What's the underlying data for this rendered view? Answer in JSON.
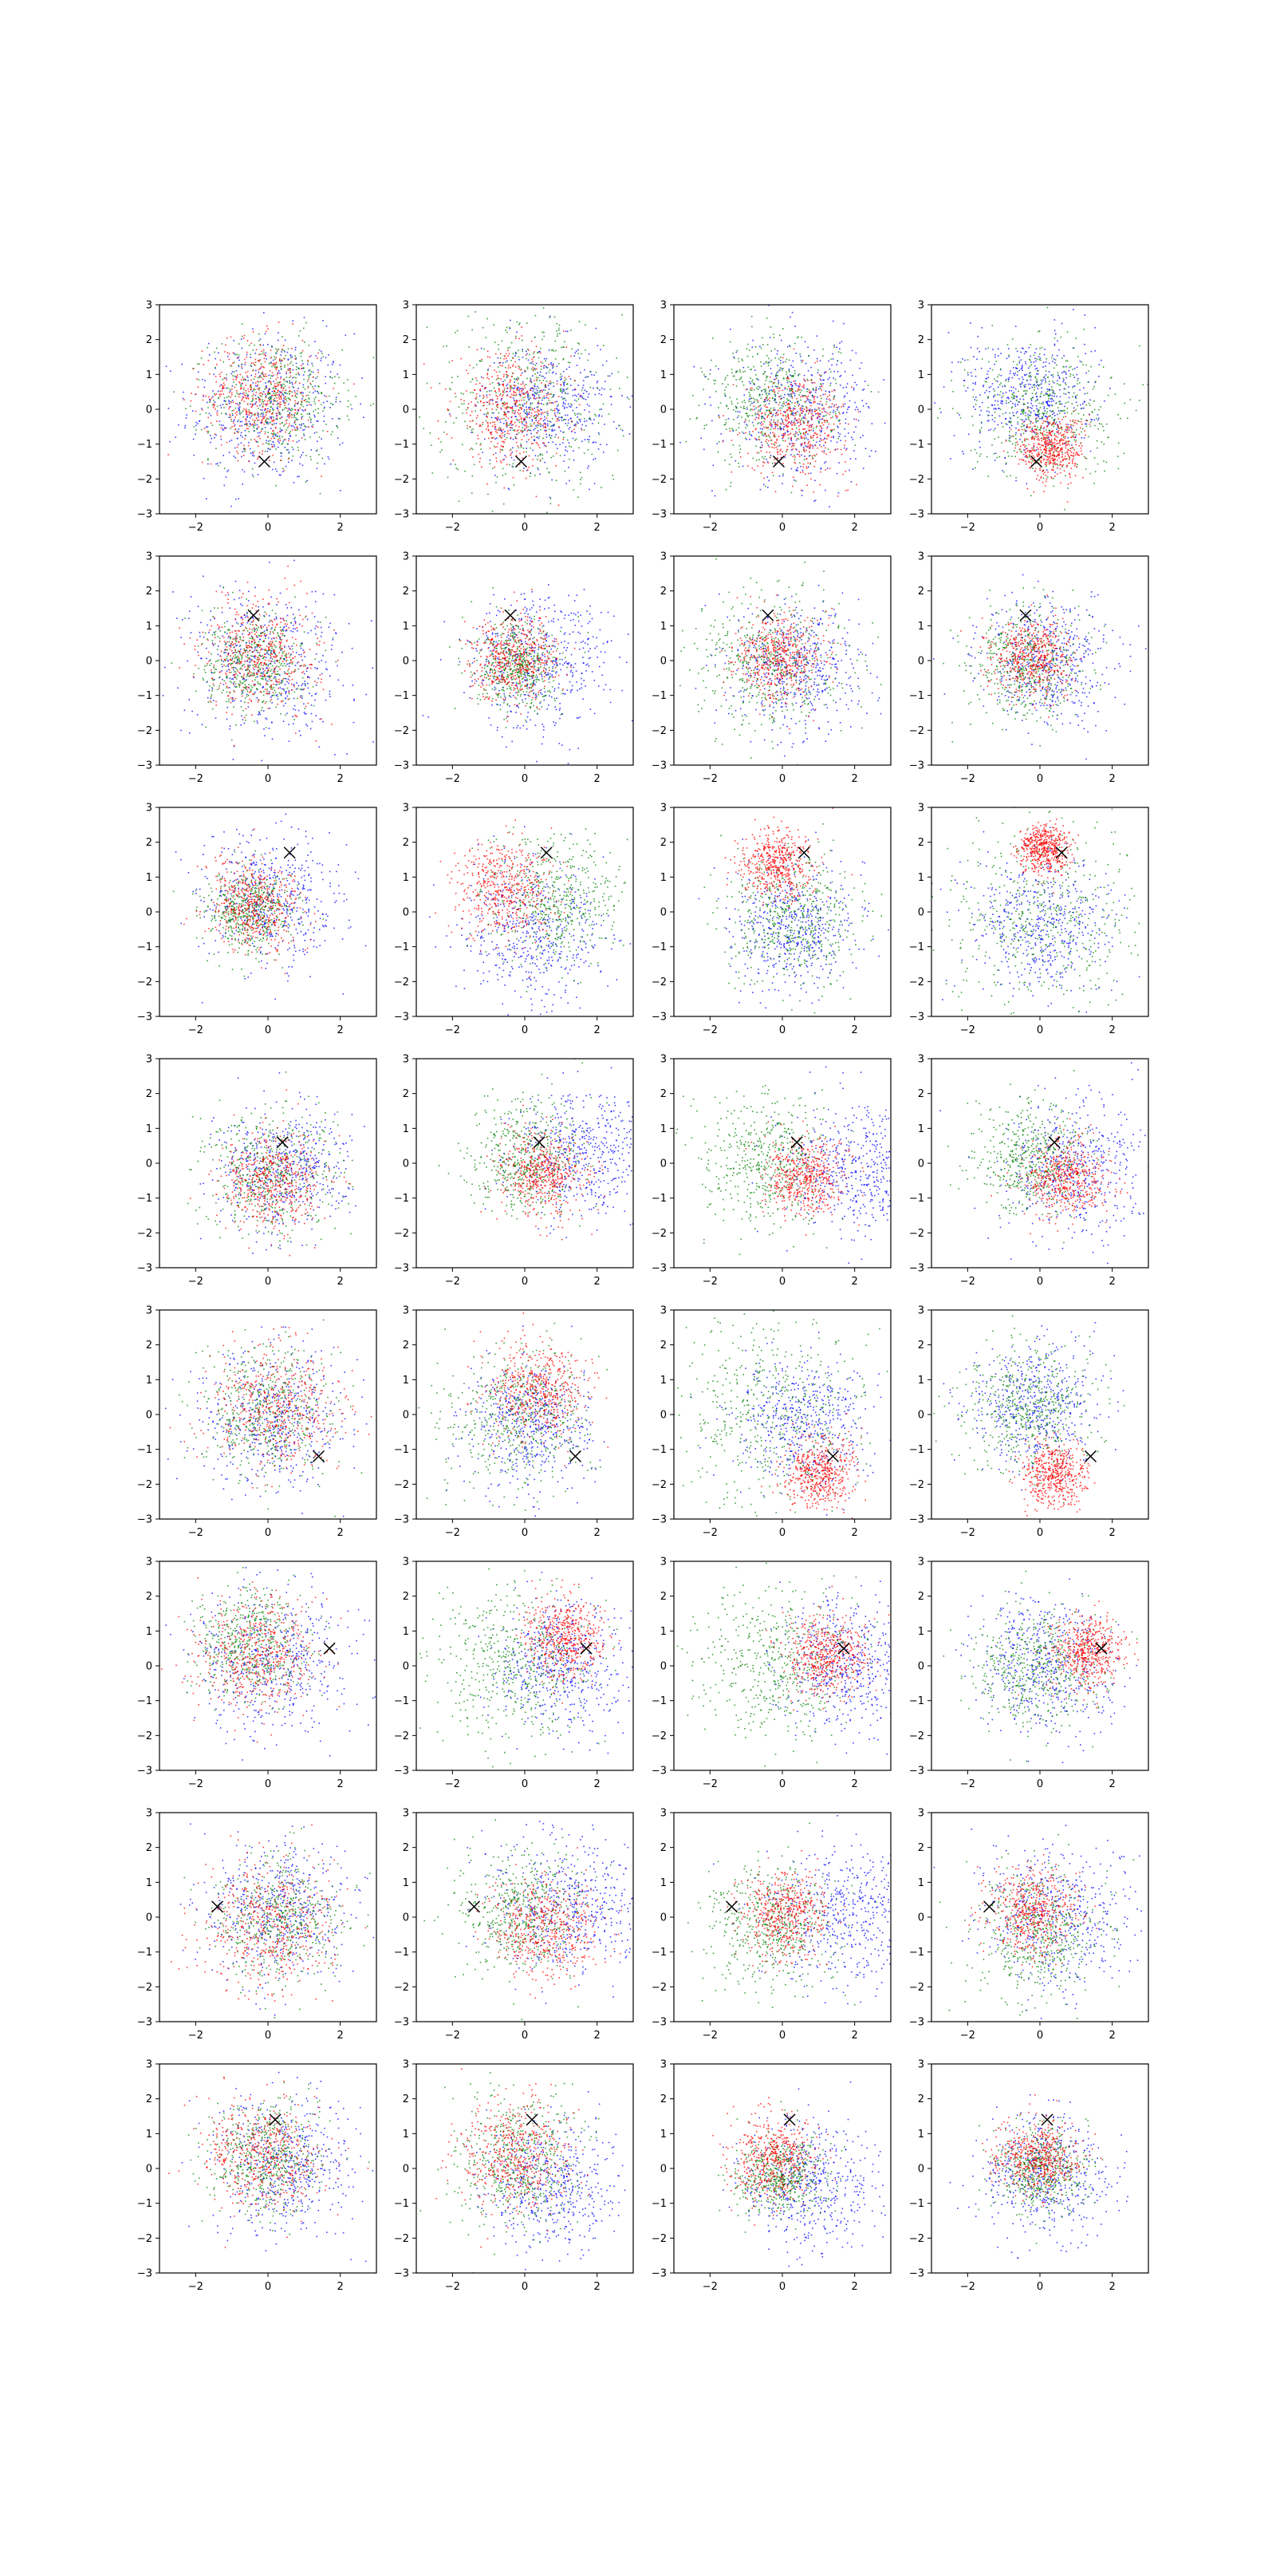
{
  "figure": {
    "rows": 8,
    "cols": 4,
    "x_ticks": [
      -2,
      0,
      2
    ],
    "y_ticks": [
      -3,
      -2,
      -1,
      0,
      1,
      2,
      3
    ],
    "xlim": [
      -3,
      3
    ],
    "ylim": [
      -3,
      3
    ]
  },
  "colors": {
    "series_a": "#0000ff",
    "series_b": "#008000",
    "series_c": "#ff0000",
    "marker": "#000000"
  },
  "chart_data": [
    {
      "type": "scatter",
      "marker_x": -0.1,
      "marker_y": -1.5,
      "panels": [
        {
          "blue": {
            "mean": [
              0,
              0
            ],
            "sd": 1.1,
            "n": 500
          },
          "green": {
            "mean": [
              0.2,
              0.3
            ],
            "sd": 0.9,
            "n": 500
          },
          "red": {
            "mean": [
              -0.2,
              0.4
            ],
            "sd": 0.8,
            "n": 500
          }
        },
        {
          "blue": {
            "mean": [
              0.6,
              0.1
            ],
            "sd": 0.9,
            "n": 500
          },
          "green": {
            "mean": [
              0.1,
              0.3
            ],
            "sd": 1.3,
            "n": 500
          },
          "red": {
            "mean": [
              -0.4,
              0
            ],
            "sd": 0.8,
            "n": 500
          }
        },
        {
          "blue": {
            "mean": [
              0.5,
              0
            ],
            "sd": 1.0,
            "n": 500
          },
          "green": {
            "mean": [
              -0.3,
              0.2
            ],
            "sd": 0.9,
            "n": 500
          },
          "red": {
            "mean": [
              0.4,
              -0.4
            ],
            "sd": 0.7,
            "n": 500
          }
        },
        {
          "blue": {
            "mean": [
              -0.3,
              0.4
            ],
            "sd": 0.9,
            "n": 500
          },
          "green": {
            "mean": [
              0,
              0
            ],
            "sd": 1.0,
            "n": 500
          },
          "red": {
            "mean": [
              0.3,
              -1.1
            ],
            "sd": 0.45,
            "n": 500
          }
        }
      ]
    },
    {
      "type": "scatter",
      "marker_x": -0.4,
      "marker_y": 1.3,
      "panels": [
        {
          "blue": {
            "mean": [
              0,
              0
            ],
            "sd": 1.1,
            "n": 500
          },
          "green": {
            "mean": [
              -0.4,
              -0.1
            ],
            "sd": 0.7,
            "n": 500
          },
          "red": {
            "mean": [
              -0.2,
              0.2
            ],
            "sd": 0.8,
            "n": 500
          }
        },
        {
          "blue": {
            "mean": [
              0.4,
              0
            ],
            "sd": 1.0,
            "n": 500
          },
          "green": {
            "mean": [
              -0.2,
              -0.2
            ],
            "sd": 0.6,
            "n": 500
          },
          "red": {
            "mean": [
              -0.3,
              0.1
            ],
            "sd": 0.6,
            "n": 500
          }
        },
        {
          "blue": {
            "mean": [
              0.4,
              -0.2
            ],
            "sd": 0.9,
            "n": 500
          },
          "green": {
            "mean": [
              -0.3,
              0
            ],
            "sd": 1.0,
            "n": 500
          },
          "red": {
            "mean": [
              -0.1,
              0.1
            ],
            "sd": 0.6,
            "n": 500
          }
        },
        {
          "blue": {
            "mean": [
              0.2,
              0
            ],
            "sd": 0.9,
            "n": 500
          },
          "green": {
            "mean": [
              -0.4,
              -0.1
            ],
            "sd": 0.8,
            "n": 500
          },
          "red": {
            "mean": [
              -0.2,
              0.1
            ],
            "sd": 0.55,
            "n": 500
          }
        }
      ]
    },
    {
      "type": "scatter",
      "marker_x": 0.6,
      "marker_y": 1.7,
      "panels": [
        {
          "blue": {
            "mean": [
              0,
              0.3
            ],
            "sd": 1.0,
            "n": 500
          },
          "green": {
            "mean": [
              -0.5,
              0
            ],
            "sd": 0.6,
            "n": 500
          },
          "red": {
            "mean": [
              -0.4,
              0.2
            ],
            "sd": 0.65,
            "n": 500
          }
        },
        {
          "blue": {
            "mean": [
              0.3,
              -0.6
            ],
            "sd": 1.0,
            "n": 500
          },
          "green": {
            "mean": [
              0.8,
              0.4
            ],
            "sd": 0.9,
            "n": 500
          },
          "red": {
            "mean": [
              -0.6,
              0.7
            ],
            "sd": 0.7,
            "n": 500
          }
        },
        {
          "blue": {
            "mean": [
              0.4,
              -0.4
            ],
            "sd": 0.9,
            "n": 500
          },
          "green": {
            "mean": [
              0.2,
              -0.2
            ],
            "sd": 0.9,
            "n": 500
          },
          "red": {
            "mean": [
              -0.2,
              1.4
            ],
            "sd": 0.5,
            "n": 500
          }
        },
        {
          "blue": {
            "mean": [
              0,
              -0.3
            ],
            "sd": 1.0,
            "n": 500
          },
          "green": {
            "mean": [
              0,
              -0.2
            ],
            "sd": 1.4,
            "n": 500
          },
          "red": {
            "mean": [
              0.1,
              1.8
            ],
            "sd": 0.35,
            "n": 500
          }
        }
      ]
    },
    {
      "type": "scatter",
      "marker_x": 0.4,
      "marker_y": 0.6,
      "panels": [
        {
          "blue": {
            "mean": [
              0.4,
              -0.2
            ],
            "sd": 0.9,
            "n": 500
          },
          "green": {
            "mean": [
              0,
              -0.3
            ],
            "sd": 0.9,
            "n": 500
          },
          "red": {
            "mean": [
              0.1,
              -0.5
            ],
            "sd": 0.7,
            "n": 500
          }
        },
        {
          "blue": {
            "mean": [
              1.6,
              0.3
            ],
            "sd": 0.9,
            "n": 500
          },
          "green": {
            "mean": [
              0,
              0.2
            ],
            "sd": 0.8,
            "n": 500
          },
          "red": {
            "mean": [
              0.5,
              -0.3
            ],
            "sd": 0.6,
            "n": 500
          }
        },
        {
          "blue": {
            "mean": [
              2.0,
              -0.1
            ],
            "sd": 0.9,
            "n": 500
          },
          "green": {
            "mean": [
              -0.4,
              0.1
            ],
            "sd": 0.9,
            "n": 500
          },
          "red": {
            "mean": [
              0.6,
              -0.4
            ],
            "sd": 0.55,
            "n": 500
          }
        },
        {
          "blue": {
            "mean": [
              0.9,
              -0.1
            ],
            "sd": 1.0,
            "n": 500
          },
          "green": {
            "mean": [
              -0.2,
              0.1
            ],
            "sd": 0.8,
            "n": 500
          },
          "red": {
            "mean": [
              0.7,
              -0.4
            ],
            "sd": 0.55,
            "n": 500
          }
        }
      ]
    },
    {
      "type": "scatter",
      "marker_x": 1.4,
      "marker_y": -1.2,
      "panels": [
        {
          "blue": {
            "mean": [
              0.1,
              -0.2
            ],
            "sd": 1.0,
            "n": 500
          },
          "green": {
            "mean": [
              0,
              0
            ],
            "sd": 0.9,
            "n": 500
          },
          "red": {
            "mean": [
              0.3,
              0.2
            ],
            "sd": 0.9,
            "n": 500
          }
        },
        {
          "blue": {
            "mean": [
              0.2,
              -0.3
            ],
            "sd": 0.9,
            "n": 500
          },
          "green": {
            "mean": [
              -0.2,
              0
            ],
            "sd": 1.0,
            "n": 500
          },
          "red": {
            "mean": [
              0.3,
              0.7
            ],
            "sd": 0.7,
            "n": 500
          }
        },
        {
          "blue": {
            "mean": [
              0.6,
              -0.1
            ],
            "sd": 0.9,
            "n": 500
          },
          "green": {
            "mean": [
              -0.3,
              0.2
            ],
            "sd": 1.4,
            "n": 500
          },
          "red": {
            "mean": [
              1.0,
              -1.7
            ],
            "sd": 0.5,
            "n": 500
          }
        },
        {
          "blue": {
            "mean": [
              -0.2,
              0.3
            ],
            "sd": 0.9,
            "n": 500
          },
          "green": {
            "mean": [
              -0.3,
              0.2
            ],
            "sd": 0.9,
            "n": 500
          },
          "red": {
            "mean": [
              0.4,
              -1.7
            ],
            "sd": 0.45,
            "n": 500
          }
        }
      ]
    },
    {
      "type": "scatter",
      "marker_x": 1.7,
      "marker_y": 0.5,
      "panels": [
        {
          "blue": {
            "mean": [
              0.1,
              0.2
            ],
            "sd": 1.0,
            "n": 500
          },
          "green": {
            "mean": [
              -0.5,
              0.7
            ],
            "sd": 0.8,
            "n": 500
          },
          "red": {
            "mean": [
              -0.3,
              0.4
            ],
            "sd": 0.8,
            "n": 500
          }
        },
        {
          "blue": {
            "mean": [
              1.0,
              0
            ],
            "sd": 0.9,
            "n": 500
          },
          "green": {
            "mean": [
              -0.4,
              0
            ],
            "sd": 1.1,
            "n": 500
          },
          "red": {
            "mean": [
              1.1,
              0.8
            ],
            "sd": 0.55,
            "n": 500
          }
        },
        {
          "blue": {
            "mean": [
              1.8,
              0
            ],
            "sd": 0.9,
            "n": 500
          },
          "green": {
            "mean": [
              -0.2,
              0
            ],
            "sd": 1.1,
            "n": 500
          },
          "red": {
            "mean": [
              1.2,
              0.3
            ],
            "sd": 0.55,
            "n": 500
          }
        },
        {
          "blue": {
            "mean": [
              0.1,
              0
            ],
            "sd": 1.0,
            "n": 500
          },
          "green": {
            "mean": [
              -0.1,
              -0.1
            ],
            "sd": 0.9,
            "n": 500
          },
          "red": {
            "mean": [
              1.3,
              0.4
            ],
            "sd": 0.5,
            "n": 500
          }
        }
      ]
    },
    {
      "type": "scatter",
      "marker_x": -1.4,
      "marker_y": 0.3,
      "panels": [
        {
          "blue": {
            "mean": [
              0.3,
              0.2
            ],
            "sd": 1.0,
            "n": 500
          },
          "green": {
            "mean": [
              0.3,
              -0.1
            ],
            "sd": 0.9,
            "n": 500
          },
          "red": {
            "mean": [
              0,
              -0.2
            ],
            "sd": 0.9,
            "n": 500
          }
        },
        {
          "blue": {
            "mean": [
              1.2,
              0.3
            ],
            "sd": 1.0,
            "n": 500
          },
          "green": {
            "mean": [
              -0.2,
              0.1
            ],
            "sd": 0.9,
            "n": 500
          },
          "red": {
            "mean": [
              0.6,
              -0.3
            ],
            "sd": 0.7,
            "n": 500
          }
        },
        {
          "blue": {
            "mean": [
              1.8,
              0
            ],
            "sd": 1.0,
            "n": 500
          },
          "green": {
            "mean": [
              -0.3,
              -0.3
            ],
            "sd": 0.9,
            "n": 500
          },
          "red": {
            "mean": [
              0,
              0.1
            ],
            "sd": 0.6,
            "n": 500
          }
        },
        {
          "blue": {
            "mean": [
              0.4,
              0
            ],
            "sd": 1.0,
            "n": 500
          },
          "green": {
            "mean": [
              0,
              -0.5
            ],
            "sd": 0.9,
            "n": 500
          },
          "red": {
            "mean": [
              -0.2,
              0.2
            ],
            "sd": 0.6,
            "n": 500
          }
        }
      ]
    },
    {
      "type": "scatter",
      "marker_x": 0.2,
      "marker_y": 1.4,
      "panels": [
        {
          "blue": {
            "mean": [
              0.4,
              0.1
            ],
            "sd": 1.0,
            "n": 500
          },
          "green": {
            "mean": [
              -0.1,
              0.3
            ],
            "sd": 0.8,
            "n": 500
          },
          "red": {
            "mean": [
              -0.2,
              0.4
            ],
            "sd": 0.8,
            "n": 500
          }
        },
        {
          "blue": {
            "mean": [
              0.7,
              -0.5
            ],
            "sd": 0.9,
            "n": 500
          },
          "green": {
            "mean": [
              -0.2,
              0.2
            ],
            "sd": 0.9,
            "n": 500
          },
          "red": {
            "mean": [
              -0.3,
              0.4
            ],
            "sd": 0.75,
            "n": 500
          }
        },
        {
          "blue": {
            "mean": [
              0.8,
              -0.5
            ],
            "sd": 0.9,
            "n": 500
          },
          "green": {
            "mean": [
              -0.1,
              -0.2
            ],
            "sd": 0.6,
            "n": 500
          },
          "red": {
            "mean": [
              -0.3,
              0.3
            ],
            "sd": 0.6,
            "n": 500
          }
        },
        {
          "blue": {
            "mean": [
              0.2,
              -0.2
            ],
            "sd": 0.9,
            "n": 500
          },
          "green": {
            "mean": [
              0,
              0
            ],
            "sd": 0.6,
            "n": 500
          },
          "red": {
            "mean": [
              -0.1,
              0.3
            ],
            "sd": 0.55,
            "n": 500
          }
        }
      ]
    }
  ]
}
